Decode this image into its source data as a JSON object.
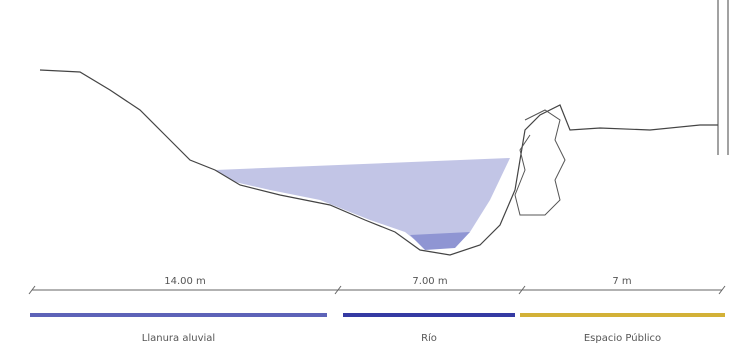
{
  "dimensions": [
    {
      "label": "14.00 m"
    },
    {
      "label": "7.00 m"
    },
    {
      "label": "7 m"
    }
  ],
  "zones": [
    {
      "label": "Llanura aluvial",
      "color": "#5d63b8"
    },
    {
      "label": "Río",
      "color": "#353aa3"
    },
    {
      "label": "Espacio Público",
      "color": "#d3b137"
    }
  ]
}
